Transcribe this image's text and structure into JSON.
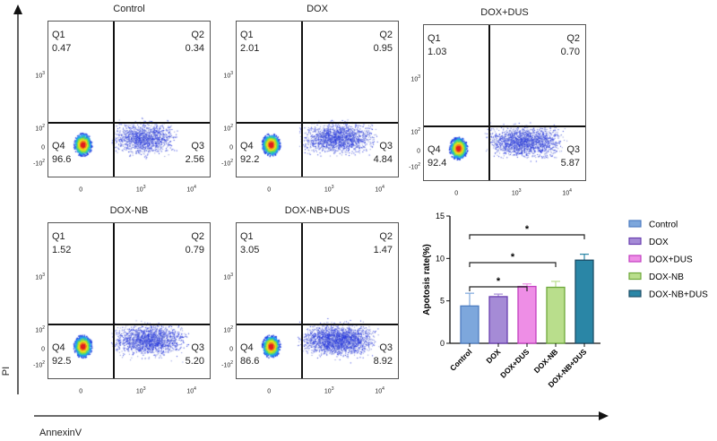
{
  "axes": {
    "y_label": "PI",
    "x_label": "AnnexinV"
  },
  "flow_ticks": {
    "y": [
      "10",
      "10",
      "0",
      "-10"
    ],
    "y_exp": [
      "3",
      "2",
      "",
      "2"
    ],
    "x": [
      "0",
      "10",
      "10"
    ],
    "x_exp": [
      "",
      "3",
      "4"
    ]
  },
  "panels": [
    {
      "title": "Control",
      "q1_label": "Q1",
      "q1": "0.47",
      "q2_label": "Q2",
      "q2": "0.34",
      "q3_label": "Q3",
      "q3": "2.56",
      "q4_label": "Q4",
      "q4": "96.6"
    },
    {
      "title": "DOX",
      "q1_label": "Q1",
      "q1": "2.01",
      "q2_label": "Q2",
      "q2": "0.95",
      "q3_label": "Q3",
      "q3": "4.84",
      "q4_label": "Q4",
      "q4": "92.2"
    },
    {
      "title": "DOX+DUS",
      "q1_label": "Q1",
      "q1": "1.03",
      "q2_label": "Q2",
      "q2": "0.70",
      "q3_label": "Q3",
      "q3": "5.87",
      "q4_label": "Q4",
      "q4": "92.4"
    },
    {
      "title": "DOX-NB",
      "q1_label": "Q1",
      "q1": "1.52",
      "q2_label": "Q2",
      "q2": "0.79",
      "q3_label": "Q3",
      "q3": "5.20",
      "q4_label": "Q4",
      "q4": "92.5"
    },
    {
      "title": "DOX-NB+DUS",
      "q1_label": "Q1",
      "q1": "3.05",
      "q2_label": "Q2",
      "q2": "1.47",
      "q3_label": "Q3",
      "q3": "8.92",
      "q4_label": "Q4",
      "q4": "86.6"
    }
  ],
  "chart_data": {
    "type": "bar",
    "title": "",
    "ylabel": "Apotosis rate(%)",
    "xlabel": "",
    "ylim": [
      0,
      15
    ],
    "yticks": [
      0,
      5,
      10,
      15
    ],
    "categories": [
      "Control",
      "DOX",
      "DOX+DUS",
      "DOX-NB",
      "DOX-NB+DUS"
    ],
    "values": [
      4.4,
      5.5,
      6.7,
      6.6,
      9.8
    ],
    "errors": [
      1.5,
      0.3,
      0.3,
      0.7,
      0.7
    ],
    "colors": [
      "#7da7dc",
      "#a58bd6",
      "#ee8ee6",
      "#b9de8c",
      "#2a86a6"
    ],
    "edge_colors": [
      "#4d7cc0",
      "#6a3fb0",
      "#c23ec0",
      "#6da83a",
      "#1d4d66"
    ],
    "significance": [
      {
        "from": "Control",
        "to": "DOX+DUS",
        "label": "*"
      },
      {
        "from": "Control",
        "to": "DOX-NB",
        "label": "*"
      },
      {
        "from": "Control",
        "to": "DOX-NB+DUS",
        "label": "*"
      }
    ],
    "legend": {
      "position": "right",
      "entries": [
        "Control",
        "DOX",
        "DOX+DUS",
        "DOX-NB",
        "DOX-NB+DUS"
      ]
    }
  }
}
